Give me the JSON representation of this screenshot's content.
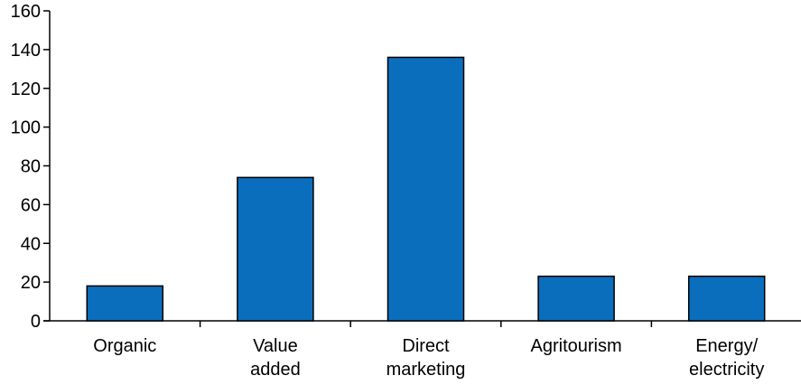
{
  "chart_data": {
    "type": "bar",
    "title": "",
    "xlabel": "",
    "ylabel": "",
    "categories": [
      [
        "Organic"
      ],
      [
        "Value",
        "added"
      ],
      [
        "Direct",
        "marketing"
      ],
      [
        "Agritourism"
      ],
      [
        "Energy/",
        "electricity"
      ]
    ],
    "values": [
      18,
      74,
      136,
      23,
      23
    ],
    "ylim": [
      0,
      160
    ],
    "yticks": [
      0,
      20,
      40,
      60,
      80,
      100,
      120,
      140,
      160
    ],
    "grid": false,
    "legend": "none",
    "colors": {
      "bar_fill": "#0a6ebd",
      "bar_stroke": "#000000",
      "axis": "#000000",
      "text": "#000000"
    }
  }
}
